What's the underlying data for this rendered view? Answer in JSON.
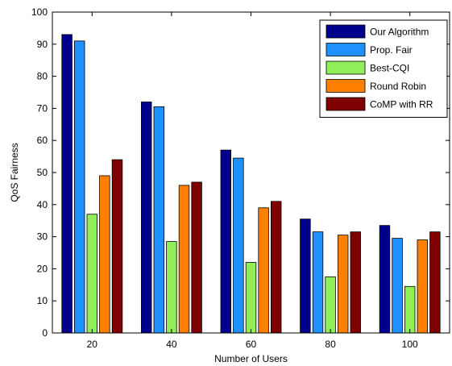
{
  "chart_data": {
    "type": "bar",
    "title": "",
    "xlabel": "Number of Users",
    "ylabel": "QoS Fairness",
    "categories": [
      "20",
      "40",
      "60",
      "80",
      "100"
    ],
    "ylim": [
      0,
      100
    ],
    "yticks": [
      "0",
      "10",
      "20",
      "30",
      "40",
      "50",
      "60",
      "70",
      "80",
      "90",
      "100"
    ],
    "grid": false,
    "legend_position": "top-right",
    "series": [
      {
        "name": "Our Algorithm",
        "color": "#00008c",
        "values": [
          93,
          72,
          57,
          35.5,
          33.5
        ]
      },
      {
        "name": "Prop. Fair",
        "color": "#1e90ff",
        "values": [
          91,
          70.5,
          54.5,
          31.5,
          29.5
        ]
      },
      {
        "name": "Best-CQI",
        "color": "#90ee5a",
        "values": [
          37,
          28.5,
          22,
          17.5,
          14.5
        ]
      },
      {
        "name": "Round Robin",
        "color": "#ff7f00",
        "values": [
          49,
          46,
          39,
          30.5,
          29
        ]
      },
      {
        "name": "CoMP with RR",
        "color": "#7f0000",
        "values": [
          54,
          47,
          41,
          31.5,
          31.5
        ]
      }
    ]
  }
}
